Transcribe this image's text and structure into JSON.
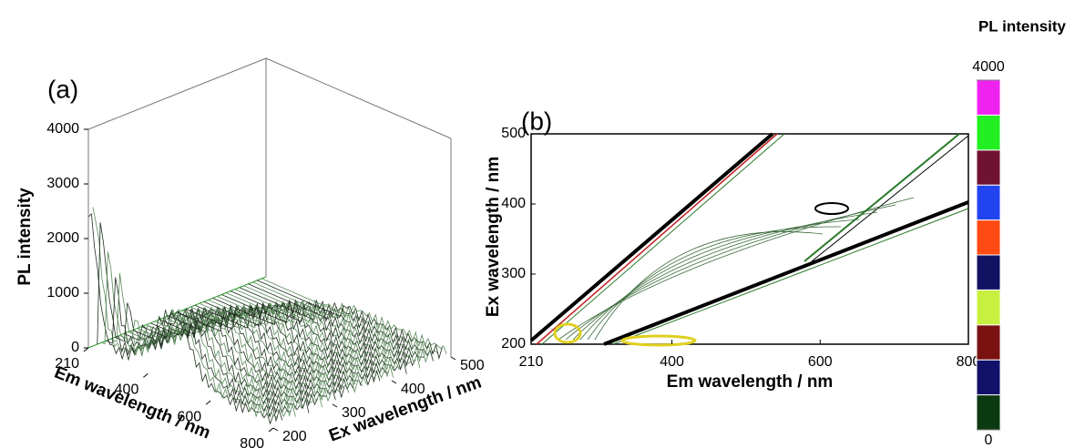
{
  "chart_data": [
    {
      "type": "surface3d",
      "panel_label": "(a)",
      "zlabel": "PL intensity",
      "xlabel": "Em wavelength / nm",
      "ylabel": "Ex wavelength / nm",
      "zlim": [
        0,
        4000
      ],
      "zticks": [
        0,
        1000,
        2000,
        3000,
        4000
      ],
      "xlim": [
        210,
        800
      ],
      "xticks": [
        210,
        400,
        600,
        800
      ],
      "ylim": [
        200,
        500
      ],
      "yticks": [
        200,
        300,
        400,
        500
      ]
    },
    {
      "type": "contour",
      "panel_label": "(b)",
      "xlabel": "Em wavelength  / nm",
      "ylabel": "Ex wavelength / nm",
      "xlim": [
        210,
        800
      ],
      "xticks": [
        210,
        400,
        600,
        800
      ],
      "ylim": [
        200,
        500
      ],
      "yticks": [
        200,
        300,
        400,
        500
      ]
    },
    {
      "type": "colorbar",
      "title": "PL intensity",
      "lim": [
        0,
        4000
      ],
      "ticks": [
        0,
        4000
      ],
      "colors": [
        "#0b3a10",
        "#12126a",
        "#7a1212",
        "#c8f040",
        "#121262",
        "#ff4a12",
        "#2244f0",
        "#701232",
        "#22f022",
        "#f022f0"
      ]
    }
  ]
}
